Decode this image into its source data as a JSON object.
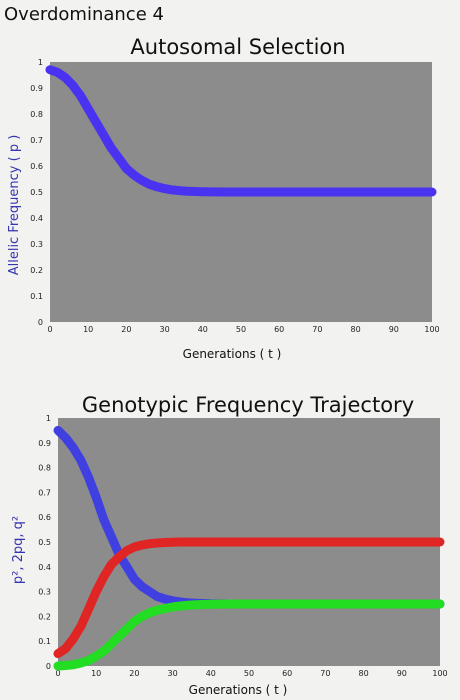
{
  "page_title": "Overdominance 4",
  "colors": {
    "plot_bg": "#8c8c8c",
    "p": "#4a33f0",
    "p2": "#4040e0",
    "two_pq": "#e02525",
    "q2": "#22dd22"
  },
  "chart_data": [
    {
      "type": "line",
      "title": "Autosomal Selection",
      "xlabel": "Generations ( t )",
      "ylabel": "Allelic Frequency ( p )",
      "xlim": [
        0,
        100
      ],
      "ylim": [
        0,
        1
      ],
      "x_ticks": [
        "0",
        "10",
        "20",
        "30",
        "40",
        "50",
        "60",
        "70",
        "80",
        "90",
        "100"
      ],
      "y_ticks": [
        "0",
        "0.1",
        "0.2",
        "0.3",
        "0.4",
        "0.5",
        "0.6",
        "0.7",
        "0.8",
        "0.9",
        "1"
      ],
      "grid": false,
      "series": [
        {
          "color": "#4a33f0",
          "x": [
            0,
            2,
            4,
            6,
            8,
            10,
            12,
            14,
            16,
            18,
            20,
            22,
            24,
            26,
            28,
            30,
            32,
            34,
            36,
            38,
            40,
            45,
            50,
            55,
            60,
            70,
            80,
            90,
            100
          ],
          "y": [
            0.97,
            0.96,
            0.94,
            0.91,
            0.87,
            0.82,
            0.77,
            0.72,
            0.67,
            0.63,
            0.59,
            0.565,
            0.545,
            0.53,
            0.52,
            0.513,
            0.508,
            0.505,
            0.503,
            0.502,
            0.501,
            0.5,
            0.5,
            0.5,
            0.5,
            0.5,
            0.5,
            0.5,
            0.5
          ]
        }
      ]
    },
    {
      "type": "line",
      "title": "Genotypic Frequency Trajectory",
      "xlabel": "Generations ( t )",
      "ylabel": "p², 2pq, q²",
      "xlim": [
        0,
        100
      ],
      "ylim": [
        0,
        1
      ],
      "x_ticks": [
        "0",
        "10",
        "20",
        "30",
        "40",
        "50",
        "60",
        "70",
        "80",
        "90",
        "100"
      ],
      "y_ticks": [
        "0",
        "0.1",
        "0.2",
        "0.3",
        "0.4",
        "0.5",
        "0.6",
        "0.7",
        "0.8",
        "0.9",
        "1"
      ],
      "grid": false,
      "series": [
        {
          "color": "#4040e0",
          "x": [
            0,
            2,
            4,
            6,
            8,
            10,
            12,
            14,
            16,
            18,
            20,
            22,
            24,
            26,
            28,
            30,
            32,
            34,
            36,
            38,
            40,
            45,
            50,
            55,
            60,
            70,
            80,
            90,
            100
          ],
          "y": [
            0.95,
            0.92,
            0.88,
            0.83,
            0.76,
            0.68,
            0.59,
            0.52,
            0.45,
            0.4,
            0.35,
            0.32,
            0.3,
            0.28,
            0.27,
            0.263,
            0.258,
            0.255,
            0.253,
            0.252,
            0.251,
            0.25,
            0.25,
            0.25,
            0.25,
            0.25,
            0.25,
            0.25,
            0.25
          ]
        },
        {
          "color": "#e02525",
          "x": [
            0,
            2,
            4,
            6,
            8,
            10,
            12,
            14,
            16,
            18,
            20,
            22,
            24,
            26,
            28,
            30,
            32,
            34,
            36,
            38,
            40,
            45,
            50,
            55,
            60,
            70,
            80,
            90,
            100
          ],
          "y": [
            0.05,
            0.07,
            0.11,
            0.16,
            0.23,
            0.3,
            0.36,
            0.41,
            0.44,
            0.465,
            0.48,
            0.488,
            0.493,
            0.496,
            0.498,
            0.499,
            0.5,
            0.5,
            0.5,
            0.5,
            0.5,
            0.5,
            0.5,
            0.5,
            0.5,
            0.5,
            0.5,
            0.5,
            0.5
          ]
        },
        {
          "color": "#22dd22",
          "x": [
            0,
            2,
            4,
            6,
            8,
            10,
            12,
            14,
            16,
            18,
            20,
            22,
            24,
            26,
            28,
            30,
            32,
            34,
            36,
            38,
            40,
            45,
            50,
            55,
            60,
            70,
            80,
            90,
            100
          ],
          "y": [
            0.0,
            0.002,
            0.005,
            0.012,
            0.022,
            0.04,
            0.06,
            0.09,
            0.12,
            0.15,
            0.18,
            0.2,
            0.215,
            0.225,
            0.232,
            0.238,
            0.242,
            0.245,
            0.247,
            0.248,
            0.249,
            0.25,
            0.25,
            0.25,
            0.25,
            0.25,
            0.25,
            0.25,
            0.25
          ]
        }
      ]
    }
  ]
}
